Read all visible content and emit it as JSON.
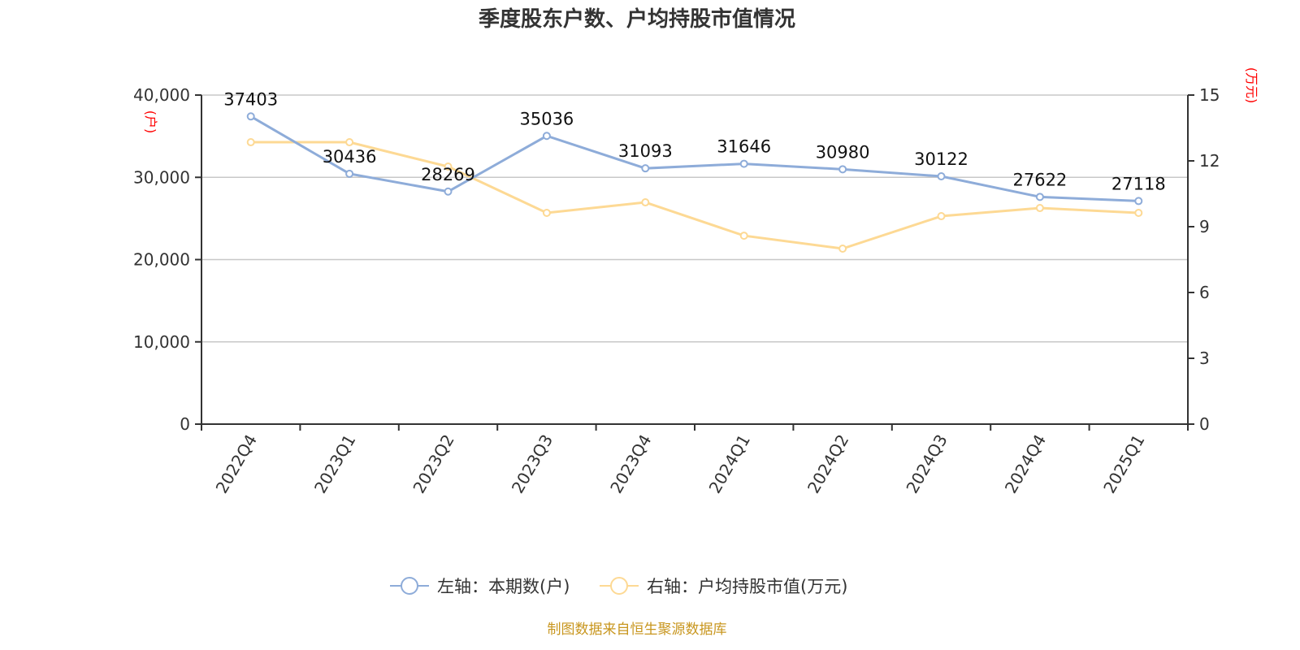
{
  "chart_data": {
    "type": "line",
    "title": "季度股东户数、户均持股市值情况",
    "categories": [
      "2022Q4",
      "2023Q1",
      "2023Q2",
      "2023Q3",
      "2023Q4",
      "2024Q1",
      "2024Q2",
      "2024Q3",
      "2024Q4",
      "2025Q1"
    ],
    "left_axis": {
      "label": "(户)",
      "range": [
        0,
        40000
      ],
      "ticks": [
        "0",
        "10,000",
        "20,000",
        "30,000",
        "40,000"
      ]
    },
    "right_axis": {
      "label": "(万元)",
      "range": [
        0,
        15
      ],
      "ticks": [
        "0",
        "3",
        "6",
        "9",
        "12",
        "15"
      ]
    },
    "grid": true,
    "legend_position": "bottom",
    "series": [
      {
        "name": "左轴：本期数(户)",
        "axis": "left",
        "color": "#8eacd9",
        "values": [
          37403,
          30436,
          28269,
          35036,
          31093,
          31646,
          30980,
          30122,
          27622,
          27118
        ],
        "labels": [
          "37403",
          "30436",
          "28269",
          "35036",
          "31093",
          "31646",
          "30980",
          "30122",
          "27622",
          "27118"
        ]
      },
      {
        "name": "右轴：户均持股市值(万元)",
        "axis": "right",
        "color": "#fdd994",
        "values": [
          12.85,
          12.85,
          11.74,
          9.63,
          10.11,
          8.59,
          8.0,
          9.48,
          9.85,
          9.63
        ]
      }
    ],
    "source": "制图数据来自恒生聚源数据库"
  }
}
